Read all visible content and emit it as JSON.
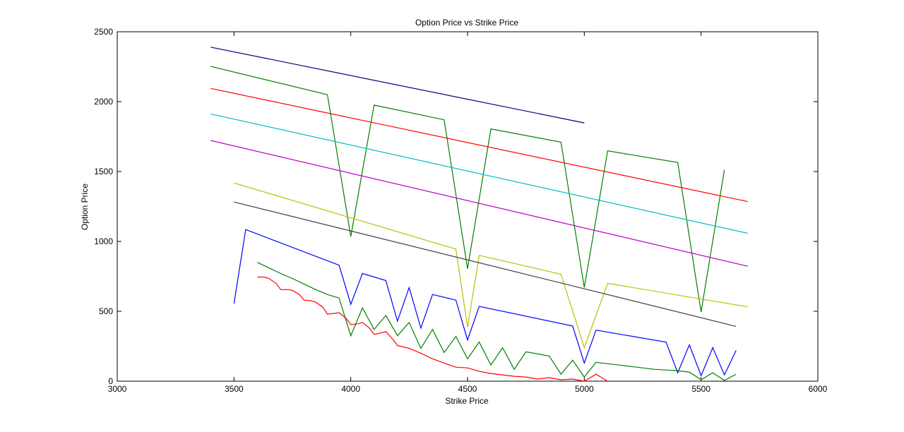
{
  "chart_data": {
    "type": "line",
    "title": "Option Price vs Strike Price",
    "xlabel": "Strike Price",
    "ylabel": "Option Price",
    "xlim": [
      3000,
      6000
    ],
    "ylim": [
      0,
      2500
    ],
    "xticks": [
      3000,
      3500,
      4000,
      4500,
      5000,
      5500,
      6000
    ],
    "yticks": [
      0,
      500,
      1000,
      1500,
      2000,
      2500
    ],
    "grid": false,
    "series": [
      {
        "color": "#00007f",
        "x": [
          3400,
          5000
        ],
        "y": [
          2390,
          1848
        ]
      },
      {
        "color": "#007f00",
        "x": [
          3400,
          3900,
          4000,
          4100,
          4400,
          4500,
          4600,
          4900,
          5000,
          5100,
          5400,
          5500,
          5600
        ],
        "y": [
          2252,
          2050,
          1035,
          1975,
          1870,
          805,
          1805,
          1710,
          670,
          1648,
          1565,
          495,
          1512
        ]
      },
      {
        "color": "#ff0000",
        "x": [
          3400,
          5700
        ],
        "y": [
          2095,
          1285
        ]
      },
      {
        "color": "#00bfbf",
        "x": [
          3400,
          5700
        ],
        "y": [
          1912,
          1058
        ]
      },
      {
        "color": "#bf00bf",
        "x": [
          3400,
          5700
        ],
        "y": [
          1722,
          822
        ]
      },
      {
        "color": "#bfbf00",
        "x": [
          3500,
          4450,
          4500,
          4550,
          4900,
          5000,
          5100,
          5700
        ],
        "y": [
          1418,
          945,
          385,
          900,
          765,
          240,
          700,
          532
        ]
      },
      {
        "color": "#3f3f3f",
        "x": [
          3500,
          5650
        ],
        "y": [
          1282,
          392
        ]
      },
      {
        "color": "#0000ff",
        "x": [
          3500,
          3550,
          3950,
          4000,
          4050,
          4150,
          4200,
          4250,
          4300,
          4350,
          4450,
          4500,
          4550,
          4950,
          5000,
          5050,
          5350,
          5400,
          5450,
          5500,
          5550,
          5600,
          5650
        ],
        "y": [
          555,
          1085,
          830,
          550,
          770,
          720,
          430,
          670,
          380,
          620,
          580,
          295,
          535,
          395,
          130,
          365,
          280,
          60,
          260,
          40,
          240,
          45,
          220
        ]
      },
      {
        "color": "#008000",
        "x": [
          3600,
          3650,
          3700,
          3750,
          3800,
          3850,
          3900,
          3950,
          4000,
          4050,
          4100,
          4150,
          4200,
          4250,
          4300,
          4350,
          4400,
          4450,
          4500,
          4550,
          4600,
          4650,
          4700,
          4750,
          4800,
          4850,
          4900,
          4950,
          5000,
          5050,
          5100,
          5150,
          5200,
          5250,
          5300,
          5350,
          5400,
          5450,
          5500,
          5550,
          5600,
          5650
        ],
        "y": [
          850,
          810,
          770,
          735,
          695,
          655,
          620,
          595,
          325,
          525,
          370,
          470,
          325,
          420,
          235,
          370,
          205,
          320,
          160,
          280,
          115,
          240,
          85,
          210,
          195,
          180,
          50,
          150,
          30,
          135,
          125,
          115,
          105,
          95,
          85,
          80,
          75,
          65,
          10,
          60,
          5,
          50
        ]
      },
      {
        "color": "#ff0000",
        "x": [
          3600,
          3630,
          3650,
          3680,
          3700,
          3730,
          3750,
          3780,
          3800,
          3830,
          3850,
          3880,
          3900,
          3930,
          3950,
          3980,
          4000,
          4030,
          4050,
          4080,
          4100,
          4130,
          4150,
          4180,
          4200,
          4250,
          4300,
          4350,
          4400,
          4450,
          4500,
          4550,
          4600,
          4650,
          4700,
          4750,
          4800,
          4850,
          4900,
          4950,
          5000,
          5050,
          5100
        ],
        "y": [
          745,
          745,
          735,
          700,
          655,
          655,
          650,
          620,
          580,
          575,
          565,
          530,
          480,
          485,
          490,
          450,
          405,
          410,
          420,
          380,
          335,
          345,
          355,
          300,
          255,
          235,
          200,
          160,
          130,
          100,
          95,
          70,
          55,
          45,
          35,
          30,
          15,
          25,
          10,
          15,
          0,
          50,
          0
        ]
      }
    ]
  }
}
